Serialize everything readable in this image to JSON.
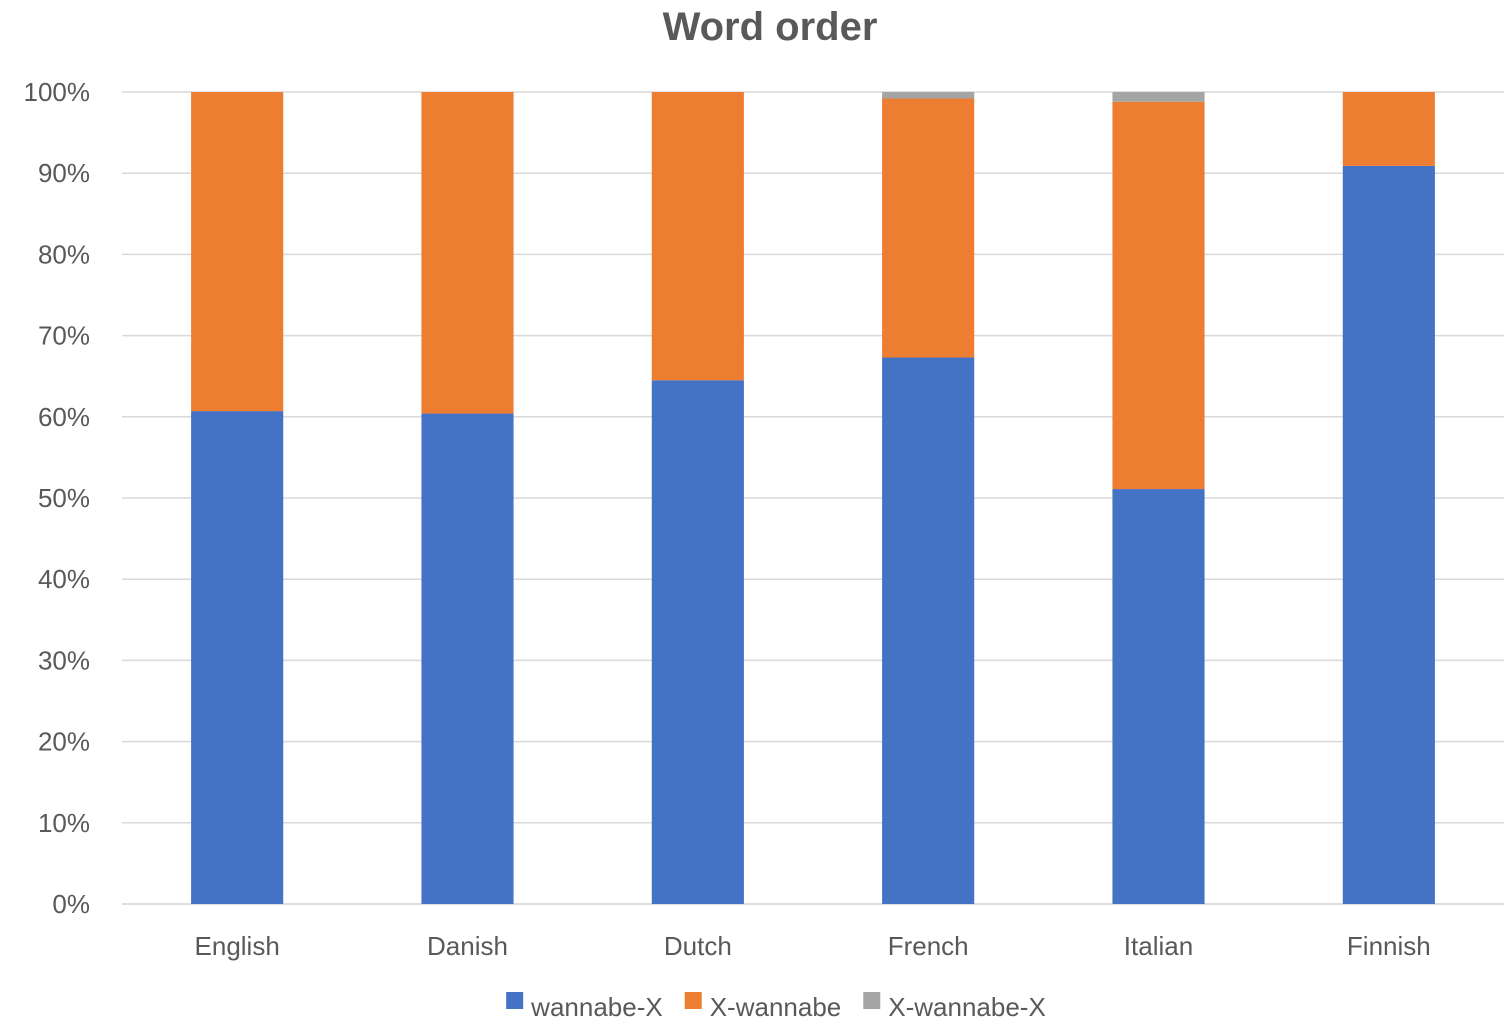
{
  "chart_data": {
    "type": "bar",
    "stacked": true,
    "percent": true,
    "title": "Word order",
    "xlabel": "",
    "ylabel": "",
    "categories": [
      "English",
      "Danish",
      "Dutch",
      "French",
      "Italian",
      "Finnish"
    ],
    "series": [
      {
        "name": "wannabe-X",
        "color": "#4472C4",
        "values": [
          60.7,
          60.4,
          64.5,
          67.3,
          51.1,
          90.9
        ]
      },
      {
        "name": "X-wannabe",
        "color": "#ED7D31",
        "values": [
          39.3,
          39.6,
          35.5,
          31.9,
          47.7,
          9.1
        ]
      },
      {
        "name": "X-wannabe-X",
        "color": "#A5A5A5",
        "values": [
          0,
          0,
          0,
          0.8,
          1.2,
          0
        ]
      }
    ],
    "y_ticks": [
      "0%",
      "10%",
      "20%",
      "30%",
      "40%",
      "50%",
      "60%",
      "70%",
      "80%",
      "90%",
      "100%"
    ],
    "ylim": [
      0,
      100
    ],
    "grid": true,
    "legend_position": "bottom"
  }
}
